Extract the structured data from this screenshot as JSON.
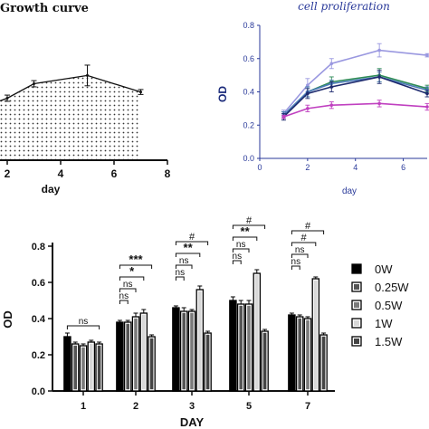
{
  "chart_data": [
    {
      "type": "line",
      "title": "Growth curve",
      "xlabel": "day",
      "ylabel": "",
      "xlim": [
        2,
        8
      ],
      "x_ticks": [
        "2",
        "4",
        "6",
        "8"
      ],
      "fill_pattern": "dotted",
      "series": [
        {
          "x": [
            2,
            3,
            5,
            7
          ],
          "y": [
            0.3,
            0.37,
            0.41,
            0.33
          ],
          "err": [
            0.015,
            0.015,
            0.05,
            0.012
          ]
        }
      ],
      "ylim": [
        0,
        0.6
      ]
    },
    {
      "type": "line",
      "title": "cell proliferation",
      "xlabel": "day",
      "ylabel": "OD",
      "xlim": [
        0,
        7
      ],
      "ylim": [
        0,
        0.8
      ],
      "x_ticks": [
        "0",
        "2",
        "4",
        "6"
      ],
      "y_ticks": [
        "0.0",
        "0.2",
        "0.4",
        "0.6",
        "0.8"
      ],
      "colors": [
        "#9a98e0",
        "#2e8b57",
        "#4a7ab8",
        "#1e2a6e",
        "#c040c0"
      ],
      "series": [
        {
          "x": [
            1,
            2,
            3,
            5,
            7
          ],
          "y": [
            0.27,
            0.44,
            0.57,
            0.65,
            0.62
          ],
          "err": [
            0.02,
            0.04,
            0.03,
            0.04,
            0.01
          ]
        },
        {
          "x": [
            1,
            2,
            3,
            5,
            7
          ],
          "y": [
            0.26,
            0.4,
            0.46,
            0.5,
            0.42
          ],
          "err": [
            0.02,
            0.03,
            0.03,
            0.04,
            0.02
          ]
        },
        {
          "x": [
            1,
            2,
            3,
            5,
            7
          ],
          "y": [
            0.26,
            0.4,
            0.45,
            0.49,
            0.41
          ],
          "err": [
            0.02,
            0.03,
            0.02,
            0.03,
            0.02
          ]
        },
        {
          "x": [
            1,
            2,
            3,
            5,
            7
          ],
          "y": [
            0.25,
            0.39,
            0.43,
            0.49,
            0.39
          ],
          "err": [
            0.02,
            0.03,
            0.03,
            0.04,
            0.02
          ]
        },
        {
          "x": [
            1,
            2,
            3,
            5,
            7
          ],
          "y": [
            0.25,
            0.3,
            0.32,
            0.33,
            0.31
          ],
          "err": [
            0.01,
            0.02,
            0.02,
            0.02,
            0.02
          ]
        }
      ]
    },
    {
      "type": "bar",
      "xlabel": "DAY",
      "ylabel": "OD",
      "ylim": [
        0,
        0.8
      ],
      "y_ticks": [
        "0.0",
        "0.2",
        "0.4",
        "0.6",
        "0.8"
      ],
      "categories": [
        "1",
        "2",
        "3",
        "5",
        "7"
      ],
      "series": [
        {
          "name": "0W",
          "values": [
            0.3,
            0.38,
            0.46,
            0.5,
            0.42
          ],
          "err": [
            0.02,
            0.01,
            0.01,
            0.02,
            0.01
          ]
        },
        {
          "name": "0.25W",
          "values": [
            0.26,
            0.38,
            0.44,
            0.48,
            0.41
          ],
          "err": [
            0.01,
            0.01,
            0.02,
            0.02,
            0.01
          ]
        },
        {
          "name": "0.5W",
          "values": [
            0.25,
            0.41,
            0.44,
            0.48,
            0.4
          ],
          "err": [
            0.01,
            0.02,
            0.01,
            0.02,
            0.01
          ]
        },
        {
          "name": "1W",
          "values": [
            0.27,
            0.43,
            0.56,
            0.65,
            0.62
          ],
          "err": [
            0.01,
            0.02,
            0.02,
            0.02,
            0.01
          ]
        },
        {
          "name": "1.5W",
          "values": [
            0.26,
            0.3,
            0.32,
            0.33,
            0.31
          ],
          "err": [
            0.01,
            0.01,
            0.01,
            0.01,
            0.01
          ]
        }
      ],
      "annotations": [
        {
          "day": "1",
          "from": 0,
          "to": 4,
          "text": "ns",
          "level": 0
        },
        {
          "day": "2",
          "from": 0,
          "to": 1,
          "text": "ns",
          "level": 0
        },
        {
          "day": "2",
          "from": 0,
          "to": 2,
          "text": "ns",
          "level": 1
        },
        {
          "day": "2",
          "from": 0,
          "to": 3,
          "text": "*",
          "level": 2
        },
        {
          "day": "2",
          "from": 0,
          "to": 4,
          "text": "***",
          "level": 3
        },
        {
          "day": "3",
          "from": 0,
          "to": 1,
          "text": "ns",
          "level": 0
        },
        {
          "day": "3",
          "from": 0,
          "to": 2,
          "text": "ns",
          "level": 1
        },
        {
          "day": "3",
          "from": 0,
          "to": 3,
          "text": "**",
          "level": 2
        },
        {
          "day": "3",
          "from": 0,
          "to": 4,
          "text": "#",
          "level": 3
        },
        {
          "day": "5",
          "from": 0,
          "to": 1,
          "text": "ns",
          "level": 0
        },
        {
          "day": "5",
          "from": 0,
          "to": 2,
          "text": "ns",
          "level": 1
        },
        {
          "day": "5",
          "from": 0,
          "to": 3,
          "text": "**",
          "level": 2
        },
        {
          "day": "5",
          "from": 0,
          "to": 4,
          "text": "#",
          "level": 3
        },
        {
          "day": "7",
          "from": 0,
          "to": 1,
          "text": "ns",
          "level": 0
        },
        {
          "day": "7",
          "from": 0,
          "to": 2,
          "text": "ns",
          "level": 1
        },
        {
          "day": "7",
          "from": 0,
          "to": 3,
          "text": "#",
          "level": 2
        },
        {
          "day": "7",
          "from": 0,
          "to": 4,
          "text": "#",
          "level": 3
        }
      ],
      "legend_position": "right"
    }
  ]
}
